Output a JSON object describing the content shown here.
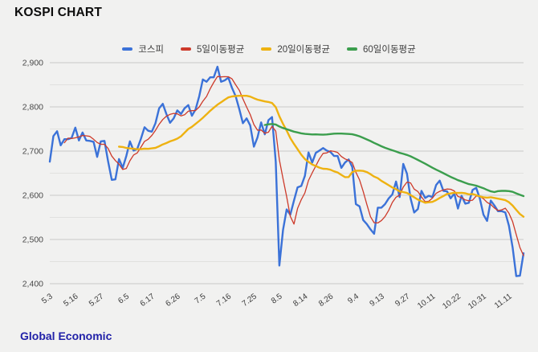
{
  "page": {
    "title": "KOSPI CHART",
    "footer_brand": "Global Economic",
    "background_color": "#f1f1f0"
  },
  "chart_data": {
    "type": "line",
    "title": "KOSPI CHART",
    "legend_position": "top",
    "x_axis": {
      "tick_labels": [
        "5.3",
        "5.16",
        "5.27",
        "6.5",
        "6.17",
        "6.26",
        "7.5",
        "7.16",
        "7.25",
        "8.5",
        "8.14",
        "8.26",
        "9.4",
        "9.13",
        "9.27",
        "10.11",
        "10.22",
        "10.31",
        "11.11"
      ],
      "tick_every_n_points": 7,
      "label_rotation_deg": -36
    },
    "y_axis": {
      "min": 2400,
      "max": 2900,
      "major_step": 100,
      "minor_step": 50,
      "label_color": "#484848"
    },
    "grid": {
      "major_color": "#c9c9c7",
      "minor_color": "#e1e1df"
    },
    "series": [
      {
        "name": "코스피",
        "color": "#3b72d8",
        "width": 2.4,
        "kind": "price"
      },
      {
        "name": "5일이동평균",
        "color": "#cd3a2a",
        "width": 1.3,
        "kind": "moving_average",
        "window": 5
      },
      {
        "name": "20일이동평균",
        "color": "#eeb211",
        "width": 2.4,
        "kind": "moving_average",
        "window": 20
      },
      {
        "name": "60일이동평균",
        "color": "#3b9e4d",
        "width": 2.4,
        "kind": "moving_average",
        "window": 60
      }
    ],
    "kospi_values": [
      2676,
      2734,
      2745,
      2713,
      2727,
      2727,
      2730,
      2753,
      2724,
      2742,
      2724,
      2723,
      2721,
      2687,
      2722,
      2723,
      2677,
      2635,
      2636,
      2682,
      2662,
      2689,
      2722,
      2701,
      2705,
      2728,
      2754,
      2746,
      2744,
      2763,
      2797,
      2807,
      2784,
      2764,
      2774,
      2792,
      2784,
      2797,
      2804,
      2780,
      2794,
      2824,
      2862,
      2857,
      2867,
      2867,
      2891,
      2857,
      2860,
      2866,
      2843,
      2824,
      2795,
      2763,
      2774,
      2758,
      2710,
      2731,
      2765,
      2738,
      2770,
      2777,
      2676,
      2441,
      2522,
      2568,
      2556,
      2588,
      2618,
      2621,
      2644,
      2697,
      2674,
      2696,
      2701,
      2707,
      2701,
      2698,
      2689,
      2689,
      2662,
      2674,
      2681,
      2664,
      2580,
      2575,
      2544,
      2535,
      2523,
      2513,
      2572,
      2572,
      2580,
      2593,
      2602,
      2631,
      2596,
      2671,
      2649,
      2593,
      2561,
      2569,
      2610,
      2594,
      2599,
      2596,
      2623,
      2633,
      2610,
      2609,
      2593,
      2604,
      2570,
      2599,
      2581,
      2583,
      2612,
      2617,
      2593,
      2556,
      2542,
      2588,
      2577,
      2564,
      2564,
      2561,
      2531,
      2482,
      2417,
      2418,
      2469
    ]
  }
}
